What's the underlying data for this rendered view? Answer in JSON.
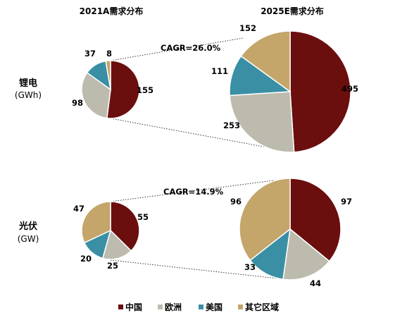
{
  "colors": {
    "中国": "#6b0e0e",
    "欧洲": "#bdbbae",
    "美国": "#3a8fa4",
    "其它区域": "#c4a56a"
  },
  "chart_data": [
    {
      "type": "pie",
      "title": "2021A需求分布",
      "row_label": "锂电",
      "row_unit": "(GWh)",
      "categories": [
        "中国",
        "欧洲",
        "美国",
        "其它区域"
      ],
      "values": [
        155,
        98,
        37,
        8
      ]
    },
    {
      "type": "pie",
      "title": "2025E需求分布",
      "row_label": "锂电",
      "row_unit": "(GWh)",
      "categories": [
        "中国",
        "欧洲",
        "美国",
        "其它区域"
      ],
      "values": [
        495,
        253,
        111,
        152
      ],
      "annotation": "CAGR=26.0%"
    },
    {
      "type": "pie",
      "title": "2021A需求分布",
      "row_label": "光伏",
      "row_unit": "(GW)",
      "categories": [
        "中国",
        "欧洲",
        "美国",
        "其它区域"
      ],
      "values": [
        55,
        25,
        20,
        47
      ]
    },
    {
      "type": "pie",
      "title": "2025E需求分布",
      "row_label": "光伏",
      "row_unit": "(GW)",
      "categories": [
        "中国",
        "欧洲",
        "美国",
        "其它区域"
      ],
      "values": [
        97,
        44,
        33,
        96
      ],
      "annotation": "CAGR=14.9%"
    }
  ],
  "legend": [
    "中国",
    "欧洲",
    "美国",
    "其它区域"
  ]
}
